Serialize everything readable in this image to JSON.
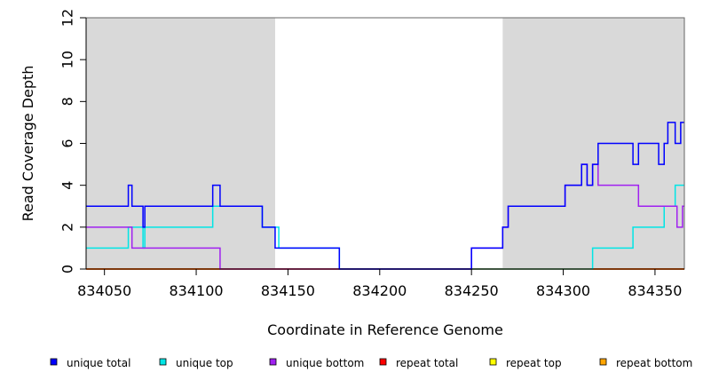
{
  "chart_data": {
    "type": "line",
    "xlabel": "Coordinate in Reference Genome",
    "ylabel": "Read Coverage Depth",
    "xlim": [
      834040,
      834366
    ],
    "ylim": [
      0,
      12
    ],
    "x_ticks": [
      834050,
      834100,
      834150,
      834200,
      834250,
      834300,
      834350
    ],
    "y_ticks": [
      0,
      2,
      4,
      6,
      8,
      10,
      12
    ],
    "grid": false,
    "shaded_regions": [
      [
        834040,
        834143
      ],
      [
        834267,
        834366
      ]
    ],
    "legend_position": "bottom",
    "series": [
      {
        "name": "repeat bottom",
        "color": "#FFA500",
        "step": true,
        "x": [
          834040,
          834366
        ],
        "y": [
          0,
          0
        ]
      },
      {
        "name": "repeat top",
        "color": "#FFFF00",
        "step": true,
        "x": [
          834040,
          834366
        ],
        "y": [
          0,
          0
        ]
      },
      {
        "name": "repeat total",
        "color": "#FF0000",
        "step": true,
        "x": [
          834040,
          834366
        ],
        "y": [
          0,
          0
        ]
      },
      {
        "name": "unique top",
        "color": "#00E5E5",
        "step": true,
        "x": [
          834040,
          834063,
          834071,
          834072,
          834109,
          834136,
          834145,
          834178,
          834316,
          834338,
          834355,
          834361,
          834366
        ],
        "y": [
          1,
          2,
          1,
          2,
          3,
          2,
          1,
          0,
          1,
          2,
          3,
          4,
          4
        ]
      },
      {
        "name": "unique bottom",
        "color": "#A020F0",
        "step": true,
        "x": [
          834040,
          834065,
          834113,
          834250,
          834267,
          834270,
          834301,
          834310,
          834313,
          834316,
          834319,
          834341,
          834362,
          834365,
          834366
        ],
        "y": [
          2,
          1,
          0,
          1,
          2,
          3,
          4,
          5,
          4,
          5,
          4,
          3,
          2,
          3,
          3
        ]
      },
      {
        "name": "unique total",
        "color": "#0000FF",
        "step": true,
        "x": [
          834040,
          834063,
          834065,
          834071,
          834072,
          834109,
          834113,
          834136,
          834143,
          834178,
          834250,
          834267,
          834270,
          834301,
          834310,
          834313,
          834316,
          834319,
          834338,
          834341,
          834352,
          834355,
          834357,
          834361,
          834364,
          834366
        ],
        "y": [
          3,
          4,
          3,
          2,
          3,
          4,
          3,
          2,
          1,
          0,
          1,
          2,
          3,
          4,
          5,
          4,
          5,
          6,
          5,
          6,
          5,
          6,
          7,
          6,
          7,
          7
        ]
      }
    ],
    "legend": [
      {
        "name": "unique total",
        "color": "#0000FF"
      },
      {
        "name": "unique top",
        "color": "#00E5E5"
      },
      {
        "name": "unique bottom",
        "color": "#A020F0"
      },
      {
        "name": "repeat total",
        "color": "#FF0000"
      },
      {
        "name": "repeat top",
        "color": "#FFFF00"
      },
      {
        "name": "repeat bottom",
        "color": "#FFA500"
      }
    ]
  }
}
